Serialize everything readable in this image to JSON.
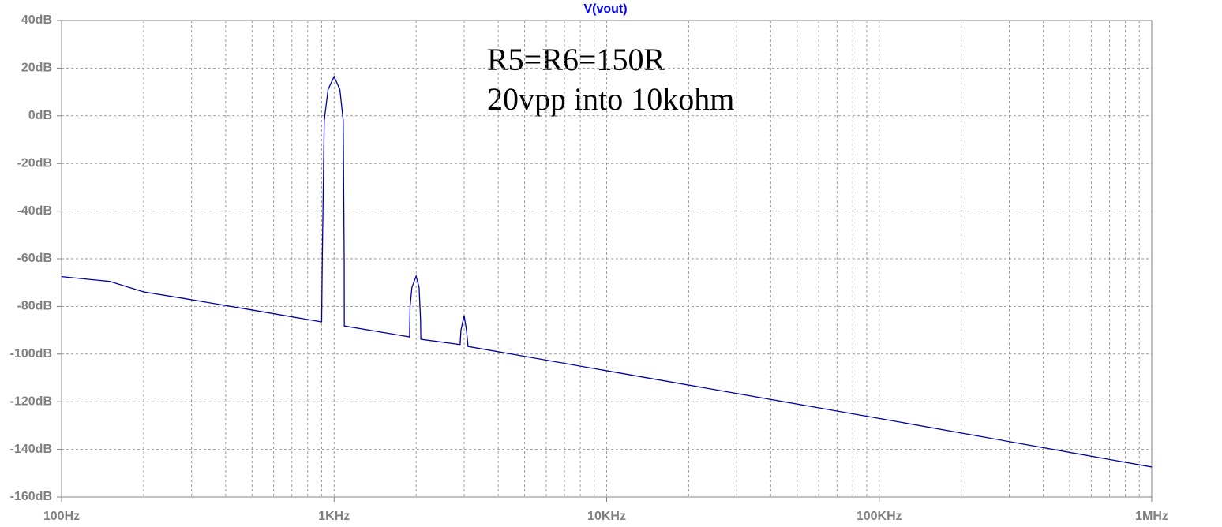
{
  "chart_data": {
    "type": "line",
    "title": "V(vout)",
    "title_color": "#0000ff",
    "annotations": [
      "R5=R6=150R",
      "20vpp into 10kohm"
    ],
    "x_log": true,
    "grid": true,
    "xlim": [
      100,
      1000000
    ],
    "xticks": [
      {
        "value": 100,
        "label": "100Hz"
      },
      {
        "value": 1000,
        "label": "1KHz"
      },
      {
        "value": 10000,
        "label": "10KHz"
      },
      {
        "value": 100000,
        "label": "100KHz"
      },
      {
        "value": 1000000,
        "label": "1MHz"
      }
    ],
    "ylim": [
      -160,
      40
    ],
    "yticks": [
      {
        "value": -160,
        "label": "-160dB"
      },
      {
        "value": -140,
        "label": "-140dB"
      },
      {
        "value": -120,
        "label": "-120dB"
      },
      {
        "value": -100,
        "label": "-100dB"
      },
      {
        "value": -80,
        "label": "-80dB"
      },
      {
        "value": -60,
        "label": "-60dB"
      },
      {
        "value": -40,
        "label": "-40dB"
      },
      {
        "value": -20,
        "label": "-20dB"
      },
      {
        "value": 0,
        "label": "0dB"
      },
      {
        "value": 20,
        "label": "20dB"
      },
      {
        "value": 40,
        "label": "40dB"
      }
    ],
    "x": [
      100,
      150,
      200,
      300,
      500,
      900,
      905,
      920,
      950,
      1000,
      1050,
      1080,
      1089,
      1090,
      1892,
      1900,
      1930,
      2000,
      2050,
      2075,
      2081,
      2900,
      2920,
      3000,
      3060,
      3090,
      3100,
      10000,
      100000,
      1000000
    ],
    "series": [
      {
        "color": "#0000a8",
        "values": [
          -67.5,
          -69.5,
          -73.9,
          -77.2,
          -81.5,
          -86.5,
          -60,
          -2,
          11,
          16.5,
          11,
          -2,
          -60,
          -88.2,
          -92.8,
          -80,
          -72,
          -67.3,
          -72,
          -85,
          -93.8,
          -96,
          -90,
          -83.8,
          -90,
          -95,
          -96.8,
          -107,
          -127,
          -147.4
        ]
      }
    ]
  }
}
